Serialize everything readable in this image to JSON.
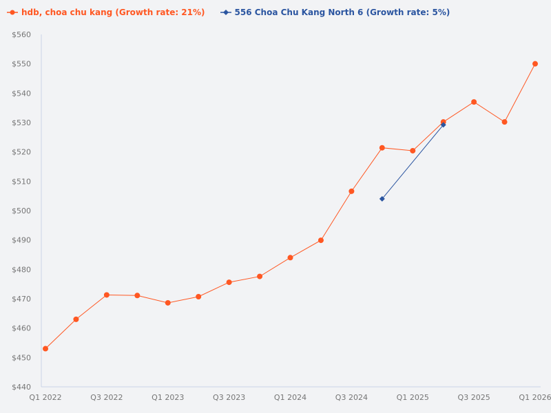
{
  "legend": [
    {
      "label": "hdb, choa chu kang (Growth rate: 21%)",
      "color": "#ff5722",
      "marker": "circle"
    },
    {
      "label": "556 Choa Chu Kang North 6 (Growth rate: 5%)",
      "color": "#2b55a0",
      "marker": "diamond"
    }
  ],
  "chart_data": {
    "type": "line",
    "title": "",
    "xlabel": "",
    "ylabel": "",
    "ylim": [
      440,
      560
    ],
    "yticks": [
      "$440",
      "$450",
      "$460",
      "$470",
      "$480",
      "$490",
      "$500",
      "$510",
      "$520",
      "$530",
      "$540",
      "$550",
      "$560"
    ],
    "xtick_labels": [
      "Q1 2022",
      "Q3 2022",
      "Q1 2023",
      "Q3 2023",
      "Q1 2024",
      "Q3 2024",
      "Q1 2025",
      "Q3 2025",
      "Q1 2026"
    ],
    "grid": false,
    "legend_position": "top-left",
    "categories": [
      "Q1 2022",
      "Q2 2022",
      "Q3 2022",
      "Q4 2022",
      "Q1 2023",
      "Q2 2023",
      "Q3 2023",
      "Q4 2023",
      "Q1 2024",
      "Q2 2024",
      "Q3 2024",
      "Q4 2024",
      "Q1 2025",
      "Q2 2025",
      "Q3 2025",
      "Q4 2025",
      "Q1 2026"
    ],
    "series": [
      {
        "name": "hdb, choa chu kang (Growth rate: 21%)",
        "color": "#ff5722",
        "values": [
          453,
          463,
          471.3,
          471.1,
          468.6,
          470.7,
          475.6,
          477.6,
          484,
          489.9,
          506.6,
          521.4,
          520.4,
          530.2,
          537,
          530.2,
          550
        ]
      },
      {
        "name": "556 Choa Chu Kang North 6 (Growth rate: 5%)",
        "color": "#2b55a0",
        "values": [
          null,
          null,
          null,
          null,
          null,
          null,
          null,
          null,
          null,
          null,
          null,
          504,
          null,
          529.2,
          null,
          null,
          null
        ]
      }
    ]
  }
}
